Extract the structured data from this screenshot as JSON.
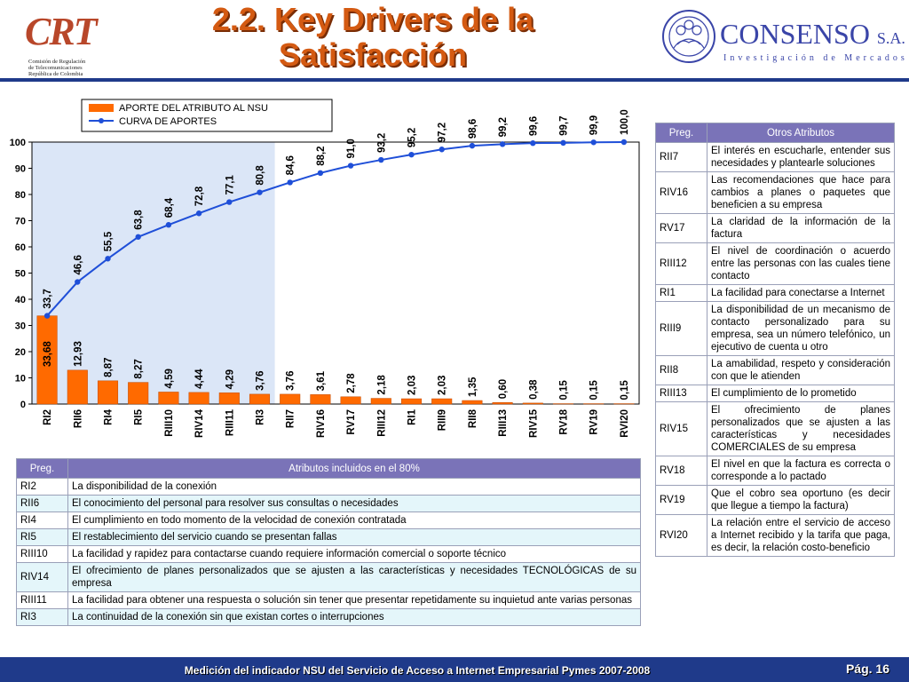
{
  "header": {
    "title": "2.2. Key Drivers de la Satisfacción",
    "crt_logo_text": "CRT",
    "crt_subtitle": "Comisión de Regulación\nde Telecomunicaciones\nRepública de Colombia",
    "consenso_name": "CONSENSO",
    "consenso_suffix": "S.A.",
    "consenso_tagline": "Investigación de Mercados"
  },
  "colors": {
    "bar": "#ff6a00",
    "line": "#1f4fd8",
    "highlight": "#dbe6f7",
    "header_rule": "#1f3a8a",
    "table_header": "#7a73b8",
    "title": "#d45a12"
  },
  "chart_data": {
    "type": "bar",
    "legend": [
      "APORTE DEL ATRIBUTO AL NSU",
      "CURVA DE APORTES"
    ],
    "categories": [
      "RI2",
      "RII6",
      "RI4",
      "RI5",
      "RIII10",
      "RIV14",
      "RIII11",
      "RI3",
      "RII7",
      "RIV16",
      "RV17",
      "RIII12",
      "RI1",
      "RIII9",
      "RII8",
      "RIII13",
      "RIV15",
      "RV18",
      "RV19",
      "RVI20"
    ],
    "series": [
      {
        "name": "APORTE DEL ATRIBUTO AL NSU",
        "type": "bar",
        "values": [
          33.68,
          12.93,
          8.87,
          8.27,
          4.59,
          4.44,
          4.29,
          3.76,
          3.76,
          3.61,
          2.78,
          2.18,
          2.03,
          2.03,
          1.35,
          0.6,
          0.38,
          0.15,
          0.15,
          0.15
        ],
        "labels": [
          "33,68",
          "12,93",
          "8,87",
          "8,27",
          "4,59",
          "4,44",
          "4,29",
          "3,76",
          "3,76",
          "3,61",
          "2,78",
          "2,18",
          "2,03",
          "2,03",
          "1,35",
          "0,60",
          "0,38",
          "0,15",
          "0,15",
          "0,15"
        ]
      },
      {
        "name": "CURVA DE APORTES",
        "type": "line",
        "values": [
          33.7,
          46.6,
          55.5,
          63.8,
          68.4,
          72.8,
          77.1,
          80.8,
          84.6,
          88.2,
          91.0,
          93.2,
          95.2,
          97.2,
          98.6,
          99.2,
          99.6,
          99.7,
          99.9,
          100.0
        ],
        "labels": [
          "33,7",
          "46,6",
          "55,5",
          "63,8",
          "68,4",
          "72,8",
          "77,1",
          "80,8",
          "84,6",
          "88,2",
          "91,0",
          "93,2",
          "95,2",
          "97,2",
          "98,6",
          "99,2",
          "99,6",
          "99,7",
          "99,9",
          "100,0"
        ]
      }
    ],
    "ylim": [
      0,
      100
    ],
    "yticks": [
      "0",
      "10",
      "20",
      "30",
      "40",
      "50",
      "60",
      "70",
      "80",
      "90",
      "100"
    ],
    "highlight_categories": 8,
    "grid": false,
    "legend_position": "top"
  },
  "right_table": {
    "headers": [
      "Preg.",
      "Otros Atributos"
    ],
    "rows": [
      {
        "code": "RII7",
        "desc": "El interés en escucharle, entender sus necesidades y plantearle soluciones"
      },
      {
        "code": "RIV16",
        "desc": "Las recomendaciones que hace para cambios a planes o paquetes que beneficien a su empresa"
      },
      {
        "code": "RV17",
        "desc": "La claridad de la información de la factura"
      },
      {
        "code": "RIII12",
        "desc": "El nivel de coordinación o acuerdo entre las personas con las cuales tiene contacto"
      },
      {
        "code": "RI1",
        "desc": "La facilidad para conectarse a Internet"
      },
      {
        "code": "RIII9",
        "desc": "La disponibilidad de un mecanismo de contacto personalizado para su empresa, sea un número telefónico, un ejecutivo de cuenta u otro"
      },
      {
        "code": "RII8",
        "desc": "La amabilidad, respeto y consideración con que le atienden"
      },
      {
        "code": "RIII13",
        "desc": "El cumplimiento de lo prometido"
      },
      {
        "code": "RIV15",
        "desc": "El ofrecimiento de planes personalizados que se ajusten a las características y necesidades COMERCIALES de su empresa"
      },
      {
        "code": "RV18",
        "desc": "El nivel en que la factura es correcta o corresponde a lo pactado"
      },
      {
        "code": "RV19",
        "desc": "Que el cobro sea oportuno (es decir que llegue a tiempo la factura)"
      },
      {
        "code": "RVI20",
        "desc": "La relación entre el servicio de acceso a Internet recibido y la tarifa que paga, es decir, la relación costo-beneficio"
      }
    ]
  },
  "bottom_table": {
    "headers": [
      "Preg.",
      "Atributos incluidos en el 80%"
    ],
    "rows": [
      {
        "code": "RI2",
        "desc": "La disponibilidad de la conexión"
      },
      {
        "code": "RII6",
        "desc": "El conocimiento del personal para resolver sus consultas o necesidades"
      },
      {
        "code": "RI4",
        "desc": "El cumplimiento en todo momento de la velocidad de conexión contratada"
      },
      {
        "code": "RI5",
        "desc": "El restablecimiento del servicio cuando se presentan fallas"
      },
      {
        "code": "RIII10",
        "desc": "La facilidad y rapidez para contactarse cuando requiere información comercial o soporte técnico"
      },
      {
        "code": "RIV14",
        "desc": "El ofrecimiento de planes personalizados que se ajusten a las características y necesidades TECNOLÓGICAS de su empresa"
      },
      {
        "code": "RIII11",
        "desc": "La facilidad para obtener una respuesta o solución sin tener que presentar repetidamente su inquietud ante varias personas"
      },
      {
        "code": "RI3",
        "desc": "La continuidad de la conexión sin que existan cortes o interrupciones"
      }
    ]
  },
  "footer": {
    "text": "Medición del  indicador NSU del Servicio de Acceso a Internet Empresarial Pymes 2007-2008",
    "page": "Pág. 16"
  }
}
